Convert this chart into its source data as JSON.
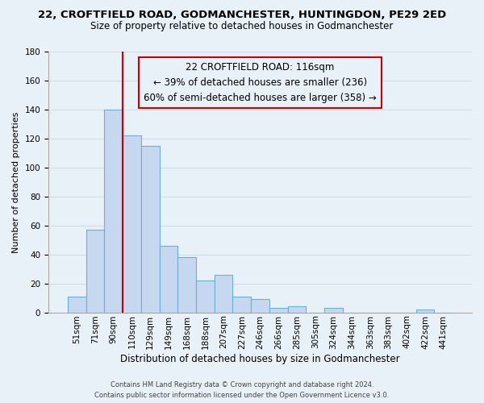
{
  "title": "22, CROFTFIELD ROAD, GODMANCHESTER, HUNTINGDON, PE29 2ED",
  "subtitle": "Size of property relative to detached houses in Godmanchester",
  "xlabel": "Distribution of detached houses by size in Godmanchester",
  "ylabel": "Number of detached properties",
  "bar_labels": [
    "51sqm",
    "71sqm",
    "90sqm",
    "110sqm",
    "129sqm",
    "149sqm",
    "168sqm",
    "188sqm",
    "207sqm",
    "227sqm",
    "246sqm",
    "266sqm",
    "285sqm",
    "305sqm",
    "324sqm",
    "344sqm",
    "363sqm",
    "383sqm",
    "402sqm",
    "422sqm",
    "441sqm"
  ],
  "bar_values": [
    11,
    57,
    140,
    122,
    115,
    46,
    38,
    22,
    26,
    11,
    9,
    3,
    4,
    0,
    3,
    0,
    0,
    0,
    0,
    2,
    0
  ],
  "bar_color": "#c5d8f0",
  "bar_edge_color": "#6baed6",
  "vline_x": 2.5,
  "vline_color": "#cc0000",
  "ylim": [
    0,
    180
  ],
  "yticks": [
    0,
    20,
    40,
    60,
    80,
    100,
    120,
    140,
    160,
    180
  ],
  "annotation_box_text_line1": "22 CROFTFIELD ROAD: 116sqm",
  "annotation_box_text_line2": "← 39% of detached houses are smaller (236)",
  "annotation_box_text_line3": "60% of semi-detached houses are larger (358) →",
  "annotation_box_edge_color": "#cc0000",
  "footer_line1": "Contains HM Land Registry data © Crown copyright and database right 2024.",
  "footer_line2": "Contains public sector information licensed under the Open Government Licence v3.0.",
  "background_color": "#e8f0f8",
  "plot_bg_color": "#e8f0f8",
  "grid_color": "#d0dce8",
  "title_fontsize": 9.5,
  "subtitle_fontsize": 8.5,
  "xlabel_fontsize": 8.5,
  "ylabel_fontsize": 8.0,
  "annotation_fontsize": 8.5,
  "tick_fontsize": 7.5,
  "footer_fontsize": 6.0
}
